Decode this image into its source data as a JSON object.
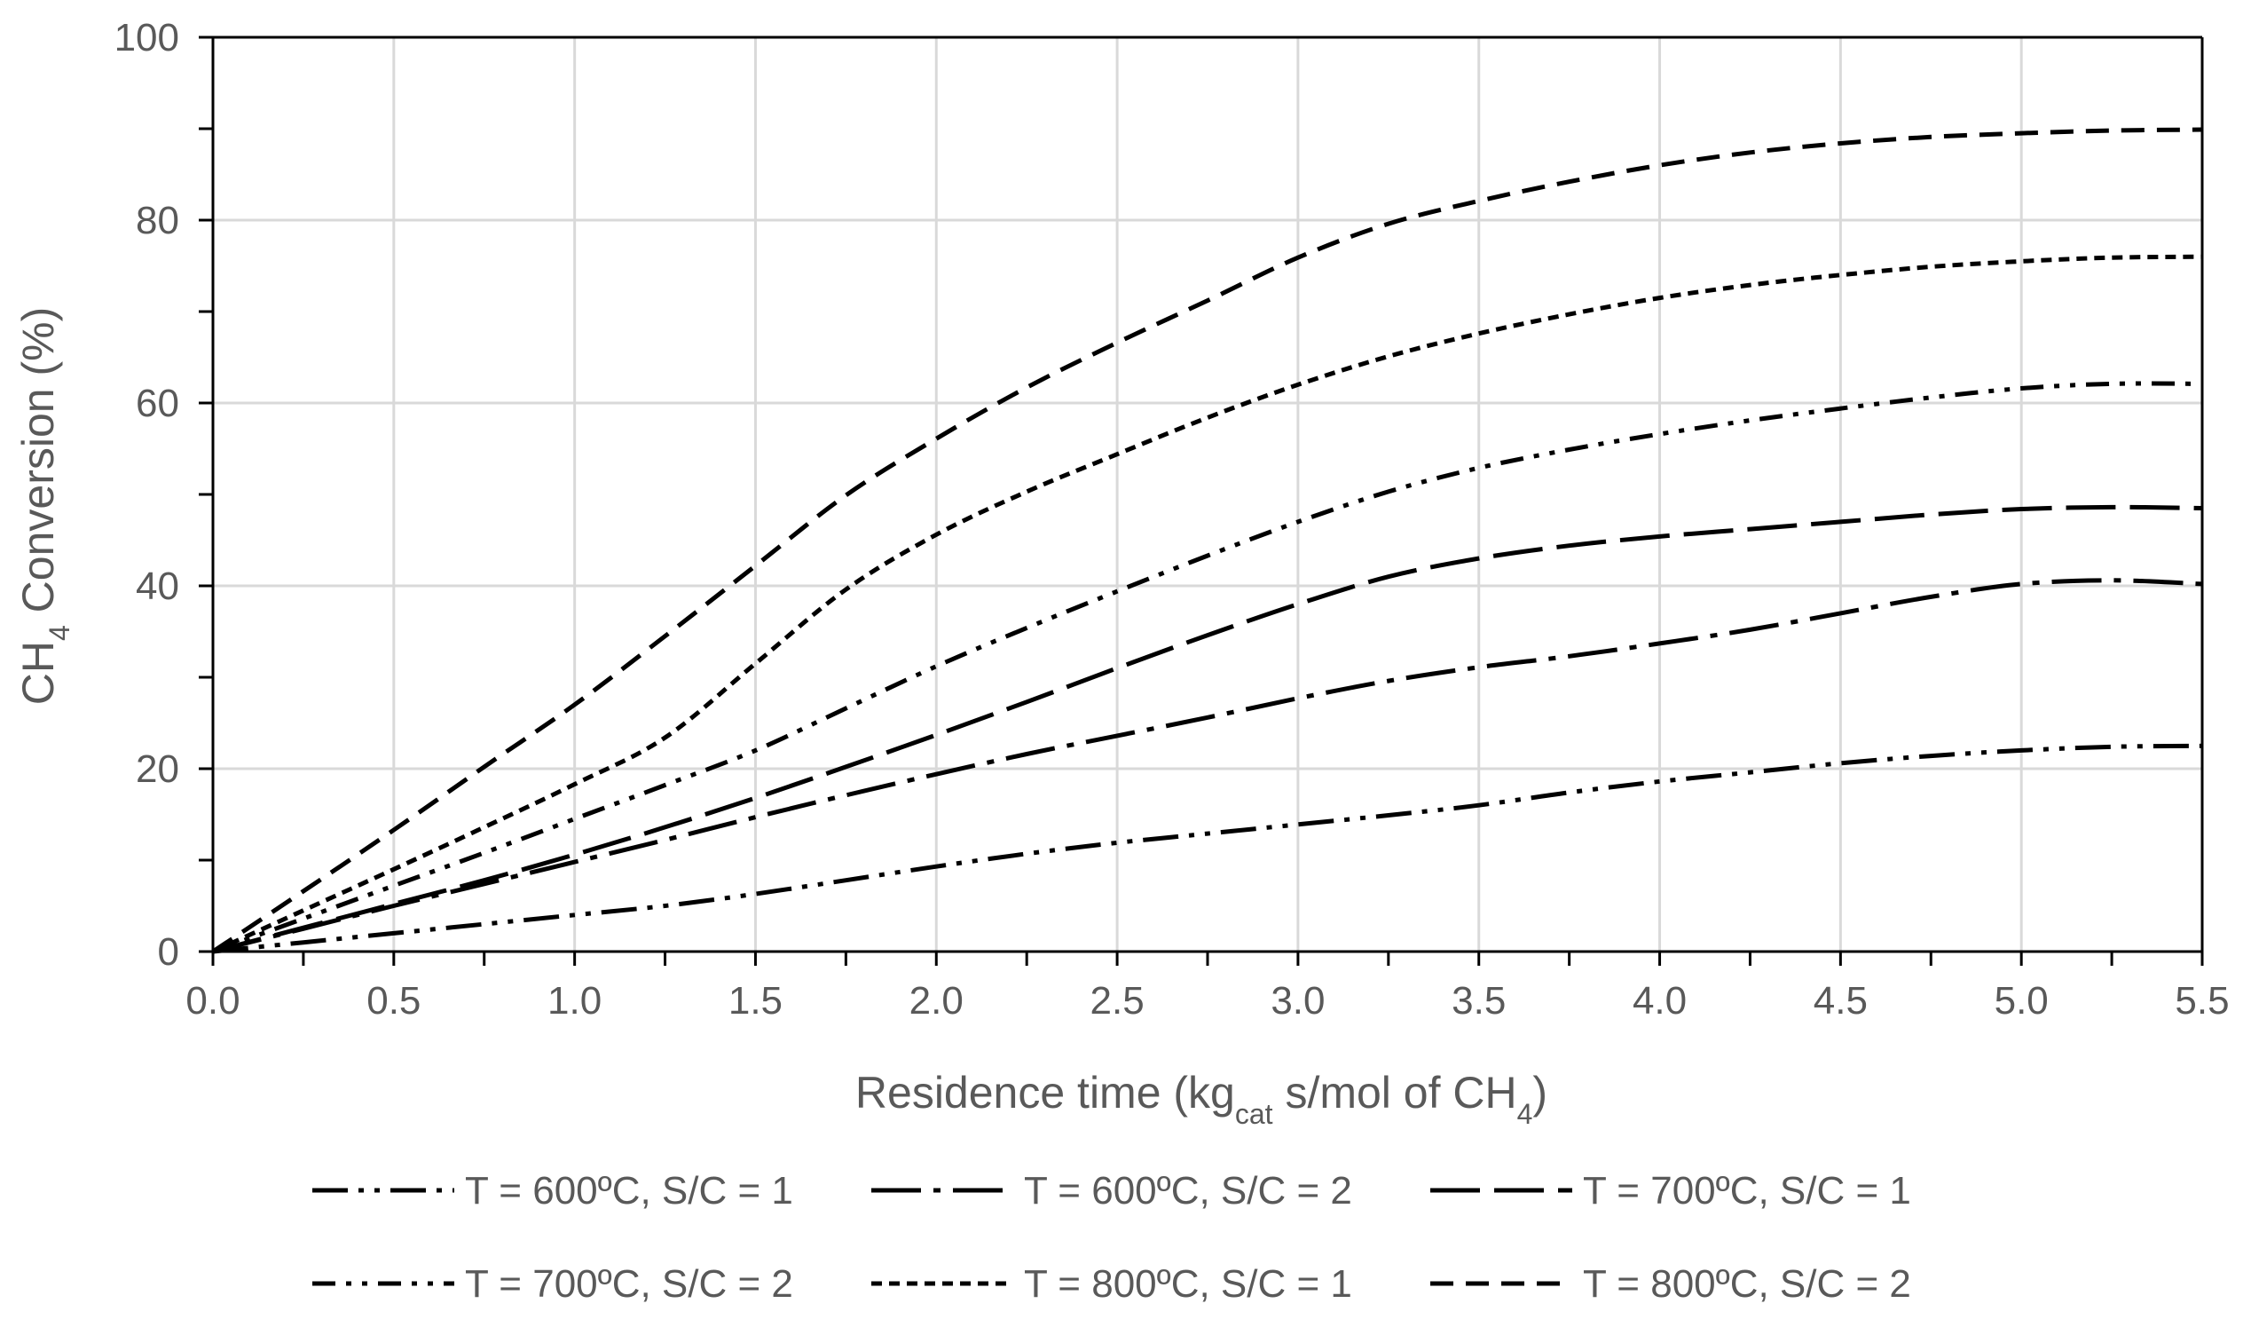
{
  "chart_data": {
    "type": "line",
    "title": "",
    "xlabel_parts": {
      "prefix": "Residence time (kg",
      "sub1": "cat",
      "middle": " s/mol of CH",
      "sub2": "4",
      "suffix": ")"
    },
    "ylabel_parts": {
      "prefix": "CH",
      "sub": "4",
      "suffix": " Conversion (%)"
    },
    "xlim": [
      0,
      5.5
    ],
    "ylim": [
      0,
      100
    ],
    "x_ticks": [
      "0.0",
      "0.5",
      "1.0",
      "1.5",
      "2.0",
      "2.5",
      "3.0",
      "3.5",
      "4.0",
      "4.5",
      "5.0",
      "5.5"
    ],
    "y_ticks": [
      "0",
      "20",
      "40",
      "60",
      "80",
      "100"
    ],
    "grid": true,
    "legend_position": "bottom",
    "series": [
      {
        "name": "T = 600ºC, S/C = 1",
        "dash": "long-dash-dot-dot",
        "x": [
          0,
          0.25,
          0.5,
          0.75,
          1.0,
          1.25,
          1.5,
          1.75,
          2.0,
          2.25,
          2.5,
          2.75,
          3.0,
          3.25,
          3.5,
          3.75,
          4.0,
          4.25,
          4.5,
          4.75,
          5.0,
          5.25,
          5.5
        ],
        "y": [
          0,
          1.0,
          2.0,
          3.0,
          4.0,
          5.0,
          6.3,
          7.8,
          9.3,
          10.7,
          11.9,
          12.9,
          13.9,
          14.9,
          16.0,
          17.4,
          18.6,
          19.6,
          20.6,
          21.4,
          22.0,
          22.4,
          22.5
        ]
      },
      {
        "name": "T = 600ºC, S/C = 2",
        "dash": "long-dash-dot",
        "x": [
          0,
          0.25,
          0.5,
          0.75,
          1.0,
          1.25,
          1.5,
          1.75,
          2.0,
          2.25,
          2.5,
          2.75,
          3.0,
          3.25,
          3.5,
          3.75,
          4.0,
          4.25,
          4.5,
          4.75,
          5.0,
          5.25,
          5.5
        ],
        "y": [
          0,
          2.5,
          5.0,
          7.4,
          9.8,
          12.2,
          14.7,
          17.1,
          19.4,
          21.6,
          23.6,
          25.6,
          27.7,
          29.6,
          31.1,
          32.3,
          33.7,
          35.2,
          37.0,
          38.8,
          40.2,
          40.6,
          40.2
        ]
      },
      {
        "name": "T = 700ºC, S/C = 1",
        "dash": "long-dash",
        "x": [
          0,
          0.25,
          0.5,
          0.75,
          1.0,
          1.25,
          1.5,
          1.75,
          2.0,
          2.25,
          2.5,
          2.75,
          3.0,
          3.25,
          3.5,
          3.75,
          4.0,
          4.25,
          4.5,
          4.75,
          5.0,
          5.25,
          5.5
        ],
        "y": [
          0,
          2.6,
          5.2,
          7.8,
          10.6,
          13.6,
          16.8,
          20.2,
          23.7,
          27.3,
          31.0,
          34.6,
          38.0,
          41.0,
          43.0,
          44.4,
          45.4,
          46.2,
          47.0,
          47.8,
          48.4,
          48.6,
          48.5
        ]
      },
      {
        "name": "T = 700ºC, S/C = 2",
        "dash": "dash-dot-dot",
        "x": [
          0,
          0.25,
          0.5,
          0.75,
          1.0,
          1.25,
          1.5,
          1.75,
          2.0,
          2.25,
          2.5,
          2.75,
          3.0,
          3.25,
          3.5,
          3.75,
          4.0,
          4.25,
          4.5,
          4.75,
          5.0,
          5.25,
          5.5
        ],
        "y": [
          0,
          3.6,
          7.2,
          10.8,
          14.5,
          18.2,
          22.0,
          26.6,
          31.2,
          35.4,
          39.4,
          43.3,
          47.0,
          50.3,
          52.9,
          54.9,
          56.6,
          58.1,
          59.4,
          60.6,
          61.6,
          62.1,
          62.1
        ]
      },
      {
        "name": "T = 800ºC, S/C = 1",
        "dash": "short-dash",
        "x": [
          0,
          0.25,
          0.5,
          0.75,
          1.0,
          1.25,
          1.5,
          1.75,
          2.0,
          2.25,
          2.5,
          2.75,
          3.0,
          3.25,
          3.5,
          3.75,
          4.0,
          4.25,
          4.5,
          4.75,
          5.0,
          5.25,
          5.5
        ],
        "y": [
          0,
          4.5,
          9.0,
          13.6,
          18.3,
          23.4,
          31.5,
          39.6,
          45.6,
          50.3,
          54.4,
          58.4,
          62.0,
          65.1,
          67.6,
          69.7,
          71.5,
          72.9,
          74.0,
          74.9,
          75.5,
          75.9,
          76.0
        ]
      },
      {
        "name": "T = 800ºC, S/C = 2",
        "dash": "medium-dash",
        "x": [
          0,
          0.25,
          0.5,
          0.75,
          1.0,
          1.25,
          1.5,
          1.75,
          2.0,
          2.25,
          2.5,
          2.75,
          3.0,
          3.25,
          3.5,
          3.75,
          4.0,
          4.25,
          4.5,
          4.75,
          5.0,
          5.25,
          5.5
        ],
        "y": [
          0,
          6.6,
          13.3,
          20.2,
          27.0,
          34.5,
          42.2,
          49.9,
          56.1,
          61.7,
          66.6,
          71.2,
          75.9,
          79.6,
          82.1,
          84.2,
          86.0,
          87.4,
          88.4,
          89.1,
          89.5,
          89.8,
          89.9
        ]
      }
    ]
  },
  "colors": {
    "line": "#000000",
    "grid": "#d9d9d9",
    "text": "#595959"
  }
}
